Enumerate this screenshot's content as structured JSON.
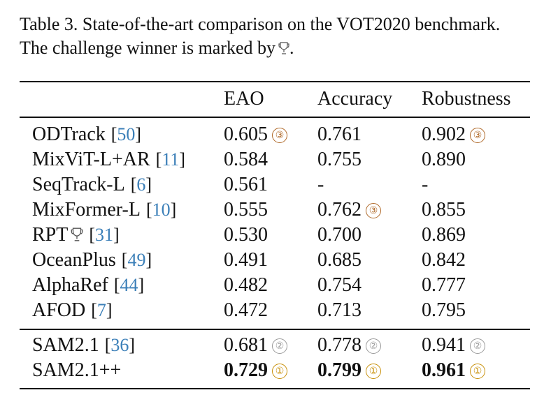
{
  "caption": {
    "line1": "Table 3. State-of-the-art comparison on the VOT2020 benchmark.",
    "line2": "The challenge winner is marked by",
    "line2_end": "."
  },
  "headers": {
    "method": "",
    "eao": "EAO",
    "accuracy": "Accuracy",
    "robustness": "Robustness"
  },
  "rows_top": [
    {
      "method": "ODTrack",
      "ref": "50",
      "eao": "0.605",
      "eao_rank": "3",
      "acc": "0.761",
      "acc_rank": "",
      "rob": "0.902",
      "rob_rank": "3",
      "winner": false
    },
    {
      "method": "MixViT-L+AR",
      "ref": "11",
      "eao": "0.584",
      "eao_rank": "",
      "acc": "0.755",
      "acc_rank": "",
      "rob": "0.890",
      "rob_rank": "",
      "winner": false
    },
    {
      "method": "SeqTrack-L",
      "ref": "6",
      "eao": "0.561",
      "eao_rank": "",
      "acc": "-",
      "acc_rank": "",
      "rob": "-",
      "rob_rank": "",
      "winner": false
    },
    {
      "method": "MixFormer-L",
      "ref": "10",
      "eao": "0.555",
      "eao_rank": "",
      "acc": "0.762",
      "acc_rank": "3",
      "rob": "0.855",
      "rob_rank": "",
      "winner": false
    },
    {
      "method": "RPT",
      "ref": "31",
      "eao": "0.530",
      "eao_rank": "",
      "acc": "0.700",
      "acc_rank": "",
      "rob": "0.869",
      "rob_rank": "",
      "winner": true
    },
    {
      "method": "OceanPlus",
      "ref": "49",
      "eao": "0.491",
      "eao_rank": "",
      "acc": "0.685",
      "acc_rank": "",
      "rob": "0.842",
      "rob_rank": "",
      "winner": false
    },
    {
      "method": "AlphaRef",
      "ref": "44",
      "eao": "0.482",
      "eao_rank": "",
      "acc": "0.754",
      "acc_rank": "",
      "rob": "0.777",
      "rob_rank": "",
      "winner": false
    },
    {
      "method": "AFOD",
      "ref": "7",
      "eao": "0.472",
      "eao_rank": "",
      "acc": "0.713",
      "acc_rank": "",
      "rob": "0.795",
      "rob_rank": "",
      "winner": false
    }
  ],
  "rows_bottom": [
    {
      "method": "SAM2.1",
      "ref": "36",
      "eao": "0.681",
      "eao_rank": "2",
      "acc": "0.778",
      "acc_rank": "2",
      "rob": "0.941",
      "rob_rank": "2",
      "bold": false
    },
    {
      "method": "SAM2.1++",
      "ref": "",
      "eao": "0.729",
      "eao_rank": "1",
      "acc": "0.799",
      "acc_rank": "1",
      "rob": "0.961",
      "rob_rank": "1",
      "bold": true
    }
  ],
  "colors": {
    "ref_link": "#3b7fb8",
    "rank_1": "#c8900a",
    "rank_2": "#9a9a9a",
    "rank_3": "#b06a2a"
  },
  "icons": {
    "winner": "trophy-icon",
    "rank": "circled-number-icon"
  }
}
